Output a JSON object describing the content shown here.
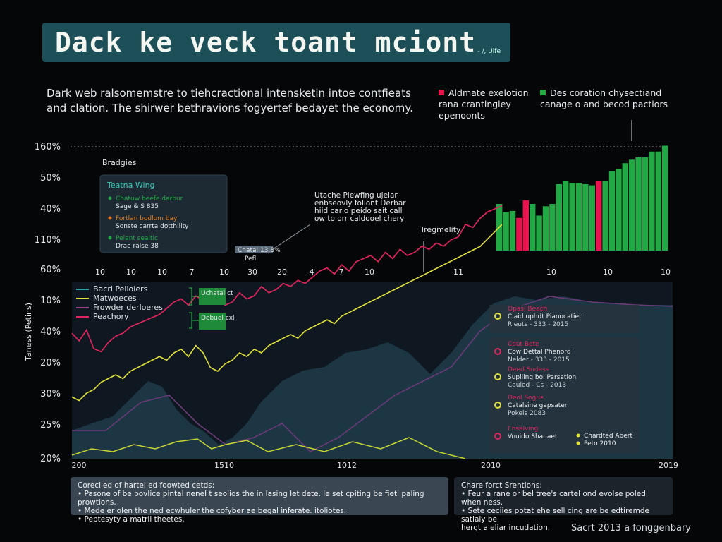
{
  "title": "Dack ke veck toant mciont",
  "title_tag": "- /, Ulfe",
  "subtitle": "Dark web ralsomemstre to tiehcractional intensketin intoe contfieats and clation. The shirwer bethravions fogyertef bedayet the economy.",
  "legend_top": [
    {
      "label": "Aldmate exelotion rana crantingley epenoonts",
      "color": "#e8134e"
    },
    {
      "label": "Des coration chysectiand canage o and becod pactiors",
      "color": "#22a844"
    }
  ],
  "y_axis_label": "Taness (Petins)",
  "upper_y_ticks": [
    "160%",
    "50%",
    "40%",
    "110%",
    "60%"
  ],
  "lower_y_ticks": [
    "10%",
    "40%",
    "20%",
    "30%",
    "25%",
    "20%"
  ],
  "mid_x_ticks": [
    "10",
    "10",
    "10",
    "7",
    "10",
    "30",
    "20",
    "4",
    "7",
    "10",
    "11",
    "10",
    "10",
    "10"
  ],
  "bottom_x_ticks": [
    "200",
    "1510",
    "1012",
    "2010",
    "2019"
  ],
  "upper_panel": {
    "heading": "Bradgies",
    "box_title": "Teatna Wing",
    "items": [
      {
        "text": "Chatuw beefe darbur",
        "sub": "Sage & S 835",
        "color": "#22a844"
      },
      {
        "text": "Fortlan bodlom bay",
        "sub": "Sonste carrta dotthility",
        "color": "#e37b1a"
      },
      {
        "text": "Pelant sealtic",
        "sub": "Drae ralse 38",
        "color": "#22a844"
      }
    ],
    "tag": "Chatal 13.8%",
    "tag_sub": "Pefl"
  },
  "annotation_center": "Utache Plewfing ujelar enbseovly foliont Derbar hiid carlo peido sait call ow to orr caldooel chery",
  "annotation_trend": "Tregmelity",
  "lower_legend": [
    {
      "label": "Bacrl Peliolers",
      "color": "#2aa7a6"
    },
    {
      "label": "Matwoeces",
      "color": "#e2e23a"
    },
    {
      "label": "Frowder derloeres",
      "color": "#9a3f86"
    },
    {
      "label": "Peachory",
      "color": "#e0245e"
    }
  ],
  "lower_tags": [
    "Uchatal ct",
    "Debuel cxl"
  ],
  "right_panel_top": {
    "title": "Opasl Beach",
    "line1": "Ciaid uphdt Pianocatier",
    "line2": "Rieuts - 333 - 2015",
    "dot": "#e2e23a"
  },
  "right_panel_items": [
    {
      "title": "Cout Bete",
      "line1": "Cow Dettal Phenord",
      "line2": "Nelder - 333 - 2015",
      "dot": "#e0245e"
    },
    {
      "title": "Deed Sodess",
      "line1": "Suplling bol Parsation",
      "line2": "Cauled - Cs - 2013",
      "dot": "#e2e23a"
    },
    {
      "title": "Deol Sogus",
      "line1": "Catalsine gapsater",
      "line2": "Pokels 2083",
      "dot": "#e2e23a"
    },
    {
      "title": "Ensalving",
      "line1": "Vouido Shanaet",
      "line2": "",
      "dot": "#e0245e"
    }
  ],
  "right_panel_pair": [
    {
      "line1": "Chardted Abert",
      "line2": "Peto 2010"
    }
  ],
  "bottom_left_panel": {
    "title": "Coreciled of hartel ed foowted cetds:",
    "lines": [
      "• Pasone of be bovlice pintal nenel t seolios the in lasing let dete. le set cpiting be fieti paling prowtions.",
      "• Mede er olen the ned ecwhuler the cofyber ae begal inferate. itoliotes.",
      "• Peptesyty a matril theetes."
    ]
  },
  "bottom_right_panel": {
    "title": "Chare forct Srentions:",
    "lines": [
      "• Feur a rane or bel tree's cartel ond evolse poled when ness.",
      "• Sete ceciies potat ehe sell cing are be edtiremde satialy be",
      "  hergt a eliar incudation."
    ]
  },
  "footer": "Sacrt 2013 a fonggenbary",
  "chart_data": [
    {
      "type": "bar",
      "name_hint": "upper-right",
      "values": [
        40,
        33,
        34,
        28,
        43,
        40,
        30,
        38,
        40,
        57,
        60,
        58,
        58,
        57,
        56,
        60,
        60,
        68,
        70,
        75,
        78,
        80,
        80,
        85,
        85,
        90
      ],
      "colors": [
        "#22a844",
        "#22a844",
        "#22a844",
        "#e8134e",
        "#e8134e",
        "#22a844",
        "#22a844",
        "#22a844",
        "#22a844",
        "#22a844",
        "#22a844",
        "#22a844",
        "#22a844",
        "#22a844",
        "#22a844",
        "#e8134e",
        "#22a844",
        "#22a844",
        "#22a844",
        "#22a844",
        "#22a844",
        "#22a844",
        "#22a844",
        "#22a844",
        "#22a844",
        "#22a844"
      ]
    },
    {
      "type": "line",
      "series": [
        {
          "name": "Peachory",
          "color": "#e0245e",
          "x": [
            0,
            1,
            2,
            3,
            4,
            5,
            6,
            7,
            8,
            9,
            10,
            11,
            12,
            13,
            14,
            15,
            16,
            17,
            18,
            19,
            20,
            21,
            22,
            23,
            24,
            25,
            26,
            27,
            28,
            29,
            30,
            31,
            32,
            33,
            34,
            35,
            36,
            37,
            38,
            39,
            40,
            41,
            42,
            43,
            44,
            45,
            46,
            47,
            48,
            49,
            50,
            51,
            52,
            53,
            54,
            55,
            56,
            57,
            58,
            59
          ],
          "y": [
            40,
            35,
            42,
            30,
            28,
            34,
            38,
            40,
            44,
            46,
            48,
            50,
            52,
            56,
            60,
            62,
            58,
            64,
            61,
            63,
            62,
            58,
            60,
            66,
            62,
            64,
            70,
            66,
            68,
            72,
            70,
            74,
            72,
            76,
            80,
            82,
            78,
            84,
            80,
            86,
            88,
            90,
            86,
            92,
            88,
            94,
            90,
            92,
            96,
            94,
            98,
            96,
            100,
            102,
            110,
            108,
            114,
            118,
            120,
            122
          ]
        },
        {
          "name": "Matwoeces",
          "color": "#e2e23a",
          "x": [
            0,
            1,
            2,
            3,
            4,
            5,
            6,
            7,
            8,
            9,
            10,
            11,
            12,
            13,
            14,
            15,
            16,
            17,
            18,
            19,
            20,
            21,
            22,
            23,
            24,
            25,
            26,
            27,
            28,
            29,
            30,
            31,
            32,
            33,
            34,
            35,
            36,
            37,
            38,
            39,
            40,
            41,
            42,
            43,
            44,
            45,
            46,
            47,
            48,
            49,
            50,
            51,
            52,
            53,
            54,
            55,
            56,
            57,
            58,
            59
          ],
          "y": [
            26,
            24,
            28,
            30,
            34,
            36,
            38,
            36,
            40,
            42,
            44,
            46,
            48,
            46,
            50,
            52,
            48,
            54,
            50,
            42,
            40,
            44,
            46,
            50,
            48,
            52,
            50,
            54,
            56,
            58,
            60,
            58,
            62,
            64,
            66,
            68,
            66,
            70,
            72,
            74,
            76,
            78,
            80,
            82,
            84,
            86,
            88,
            90,
            92,
            94,
            96,
            98,
            100,
            102,
            104,
            106,
            108,
            112,
            116,
            120
          ]
        }
      ]
    }
  ]
}
